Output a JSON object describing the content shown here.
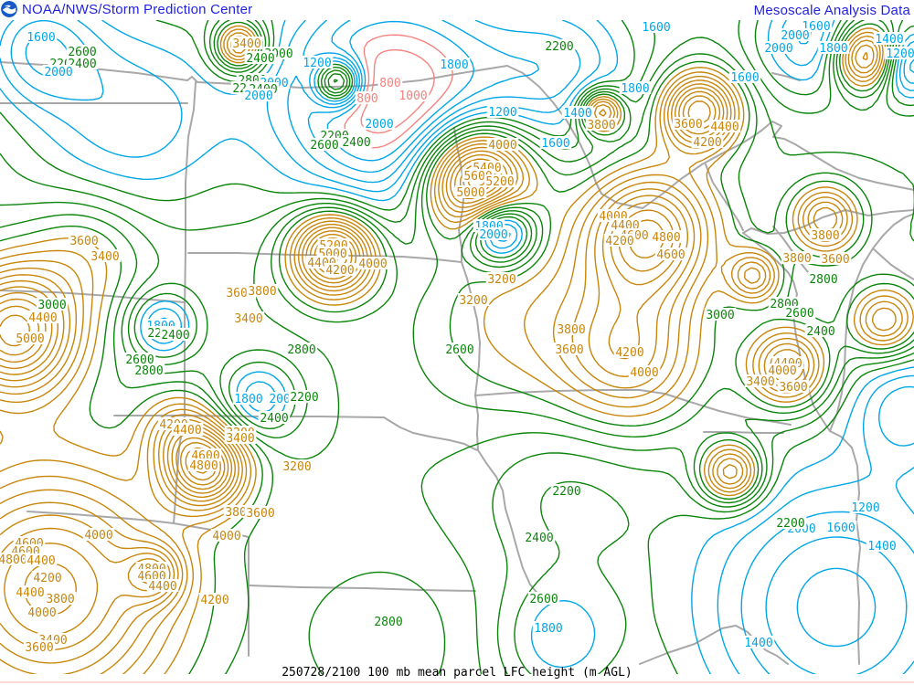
{
  "header": {
    "title": "NOAA/NWS/Storm Prediction Center",
    "right_text": "Mesoscale Analysis Data",
    "text_color": "#2222e0",
    "logo_color": "#1659c7"
  },
  "footer": {
    "caption": "250728/2100 100 mb mean parcel LFC height (m AGL)"
  },
  "map": {
    "field_name": "100 mb mean parcel LFC height",
    "units": "m AGL",
    "datetime": "250728/2100",
    "contour_interval": 200,
    "level_min": 800,
    "level_max": 5600,
    "colors": {
      "red": "#f5837f",
      "cyan": "#00a6e8",
      "green": "#0a850a",
      "orange": "#c8860b",
      "borders": "#a8a8a8",
      "background": "#ffffff",
      "bottom_line": "#ffd9d9"
    },
    "color_ranges": [
      {
        "min": 800,
        "max": 1000,
        "color": "red"
      },
      {
        "min": 1200,
        "max": 2000,
        "color": "cyan"
      },
      {
        "min": 2200,
        "max": 3000,
        "color": "green"
      },
      {
        "min": 3200,
        "max": 5600,
        "color": "orange"
      }
    ],
    "labels": [
      [
        "1600",
        45,
        40,
        "cyan"
      ],
      [
        "2600",
        90,
        56,
        "green"
      ],
      [
        "2200",
        70,
        69,
        "green"
      ],
      [
        "2400",
        90,
        69,
        "green"
      ],
      [
        "2000",
        64,
        78,
        "cyan"
      ],
      [
        "3400",
        270,
        47,
        "orange"
      ],
      [
        "3000",
        305,
        58,
        "green"
      ],
      [
        "2400",
        285,
        63,
        "green"
      ],
      [
        "2800",
        276,
        87,
        "green"
      ],
      [
        "2000",
        300,
        90,
        "cyan"
      ],
      [
        "2200",
        270,
        96,
        "green"
      ],
      [
        "2400",
        288,
        97,
        "green"
      ],
      [
        "2000",
        283,
        104,
        "cyan"
      ],
      [
        "1200",
        347,
        68,
        "cyan"
      ],
      [
        "800",
        427,
        90,
        "red"
      ],
      [
        "1000",
        452,
        104,
        "red"
      ],
      [
        "800",
        402,
        107,
        "red"
      ],
      [
        "1800",
        497,
        70,
        "cyan"
      ],
      [
        "2000",
        415,
        135,
        "cyan"
      ],
      [
        "2200",
        366,
        148,
        "green"
      ],
      [
        "2400",
        390,
        155,
        "green"
      ],
      [
        "2600",
        355,
        158,
        "green"
      ],
      [
        "1200",
        550,
        122,
        "cyan"
      ],
      [
        "1400",
        632,
        123,
        "cyan"
      ],
      [
        "1600",
        608,
        156,
        "cyan"
      ],
      [
        "2200",
        612,
        50,
        "green"
      ],
      [
        "1600",
        718,
        29,
        "cyan"
      ],
      [
        "1600",
        893,
        28,
        "cyan"
      ],
      [
        "2000",
        870,
        38,
        "cyan"
      ],
      [
        "2000",
        852,
        52,
        "cyan"
      ],
      [
        "1800",
        912,
        52,
        "cyan"
      ],
      [
        "1600",
        815,
        84,
        "cyan"
      ],
      [
        "1800",
        695,
        96,
        "cyan"
      ],
      [
        "1400",
        973,
        42,
        "cyan"
      ],
      [
        "1200",
        985,
        58,
        "cyan"
      ],
      [
        "3800",
        658,
        136,
        "orange"
      ],
      [
        "3600",
        753,
        135,
        "orange"
      ],
      [
        "4400",
        793,
        138,
        "orange"
      ],
      [
        "4200",
        774,
        155,
        "orange"
      ],
      [
        "3600",
        92,
        263,
        "orange"
      ],
      [
        "3400",
        115,
        280,
        "orange"
      ],
      [
        "3600",
        263,
        320,
        "orange"
      ],
      [
        "3800",
        287,
        318,
        "orange"
      ],
      [
        "3400",
        272,
        348,
        "orange"
      ],
      [
        "3000",
        57,
        333,
        "green"
      ],
      [
        "4400",
        47,
        347,
        "orange"
      ],
      [
        "5000",
        33,
        370,
        "orange"
      ],
      [
        "1800",
        176,
        356,
        "cyan"
      ],
      [
        "2200",
        177,
        364,
        "green"
      ],
      [
        "2400",
        192,
        366,
        "green"
      ],
      [
        "2600",
        153,
        393,
        "green"
      ],
      [
        "2800",
        163,
        405,
        "green"
      ],
      [
        "5200",
        365,
        268,
        "orange"
      ],
      [
        "5000",
        364,
        277,
        "orange"
      ],
      [
        "4400",
        352,
        287,
        "orange"
      ],
      [
        "4000",
        408,
        288,
        "orange"
      ],
      [
        "4200",
        372,
        295,
        "orange"
      ],
      [
        "2800",
        330,
        382,
        "green"
      ],
      [
        "4000",
        550,
        158,
        "orange"
      ],
      [
        "5400",
        533,
        183,
        "orange"
      ],
      [
        "5600",
        523,
        192,
        "orange"
      ],
      [
        "5200",
        547,
        198,
        "orange"
      ],
      [
        "5000",
        515,
        210,
        "orange"
      ],
      [
        "1800",
        535,
        247,
        "cyan"
      ],
      [
        "2000",
        540,
        256,
        "cyan"
      ],
      [
        "3200",
        549,
        305,
        "orange"
      ],
      [
        "3200",
        518,
        328,
        "orange"
      ],
      [
        "3800",
        625,
        360,
        "orange"
      ],
      [
        "3600",
        623,
        382,
        "orange"
      ],
      [
        "2600",
        503,
        382,
        "green"
      ],
      [
        "4200",
        689,
        385,
        "orange"
      ],
      [
        "4000",
        705,
        407,
        "orange"
      ],
      [
        "4000",
        671,
        236,
        "orange"
      ],
      [
        "4400",
        684,
        246,
        "orange"
      ],
      [
        "4600",
        694,
        257,
        "orange"
      ],
      [
        "4200",
        678,
        263,
        "orange"
      ],
      [
        "4800",
        729,
        259,
        "orange"
      ],
      [
        "4600",
        734,
        278,
        "orange"
      ],
      [
        "3800",
        903,
        257,
        "orange"
      ],
      [
        "3800",
        872,
        282,
        "orange"
      ],
      [
        "3600",
        914,
        283,
        "orange"
      ],
      [
        "2800",
        901,
        305,
        "green"
      ],
      [
        "3000",
        788,
        344,
        "green"
      ],
      [
        "2800",
        858,
        332,
        "green"
      ],
      [
        "2600",
        875,
        342,
        "green"
      ],
      [
        "2400",
        898,
        362,
        "green"
      ],
      [
        "4400",
        862,
        397,
        "orange"
      ],
      [
        "4000",
        856,
        405,
        "orange"
      ],
      [
        "3400",
        832,
        417,
        "orange"
      ],
      [
        "3600",
        868,
        423,
        "orange"
      ],
      [
        "1800",
        272,
        436,
        "cyan"
      ],
      [
        "2000",
        310,
        436,
        "cyan"
      ],
      [
        "2200",
        333,
        434,
        "green"
      ],
      [
        "2400",
        300,
        457,
        "green"
      ],
      [
        "4200",
        190,
        464,
        "orange"
      ],
      [
        "4400",
        205,
        470,
        "orange"
      ],
      [
        "3200",
        263,
        473,
        "orange"
      ],
      [
        "3400",
        263,
        479,
        "orange"
      ],
      [
        "4600",
        225,
        498,
        "orange"
      ],
      [
        "4800",
        223,
        509,
        "orange"
      ],
      [
        "3200",
        325,
        510,
        "orange"
      ],
      [
        "3800",
        262,
        560,
        "orange"
      ],
      [
        "3600",
        285,
        561,
        "orange"
      ],
      [
        "4000",
        108,
        585,
        "orange"
      ],
      [
        "4600",
        32,
        594,
        "orange"
      ],
      [
        "4600",
        28,
        603,
        "orange"
      ],
      [
        "4800",
        14,
        612,
        "orange"
      ],
      [
        "4400",
        45,
        613,
        "orange"
      ],
      [
        "4200",
        52,
        632,
        "orange"
      ],
      [
        "4400",
        33,
        648,
        "orange"
      ],
      [
        "3800",
        66,
        655,
        "orange"
      ],
      [
        "4000",
        46,
        670,
        "orange"
      ],
      [
        "3400",
        58,
        700,
        "orange"
      ],
      [
        "3600",
        43,
        708,
        "orange"
      ],
      [
        "4800",
        166,
        622,
        "orange"
      ],
      [
        "4600",
        166,
        630,
        "orange"
      ],
      [
        "4400",
        178,
        641,
        "orange"
      ],
      [
        "4000",
        248,
        586,
        "orange"
      ],
      [
        "4200",
        235,
        656,
        "orange"
      ],
      [
        "2800",
        425,
        680,
        "green"
      ],
      [
        "2600",
        595,
        655,
        "green"
      ],
      [
        "2400",
        590,
        588,
        "green"
      ],
      [
        "2200",
        620,
        537,
        "green"
      ],
      [
        "1800",
        600,
        687,
        "cyan"
      ],
      [
        "1200",
        947,
        555,
        "cyan"
      ],
      [
        "1600",
        920,
        577,
        "cyan"
      ],
      [
        "2000",
        877,
        578,
        "cyan"
      ],
      [
        "2200",
        865,
        572,
        "green"
      ],
      [
        "1400",
        965,
        597,
        "cyan"
      ],
      [
        "1400",
        830,
        703,
        "cyan"
      ]
    ]
  }
}
